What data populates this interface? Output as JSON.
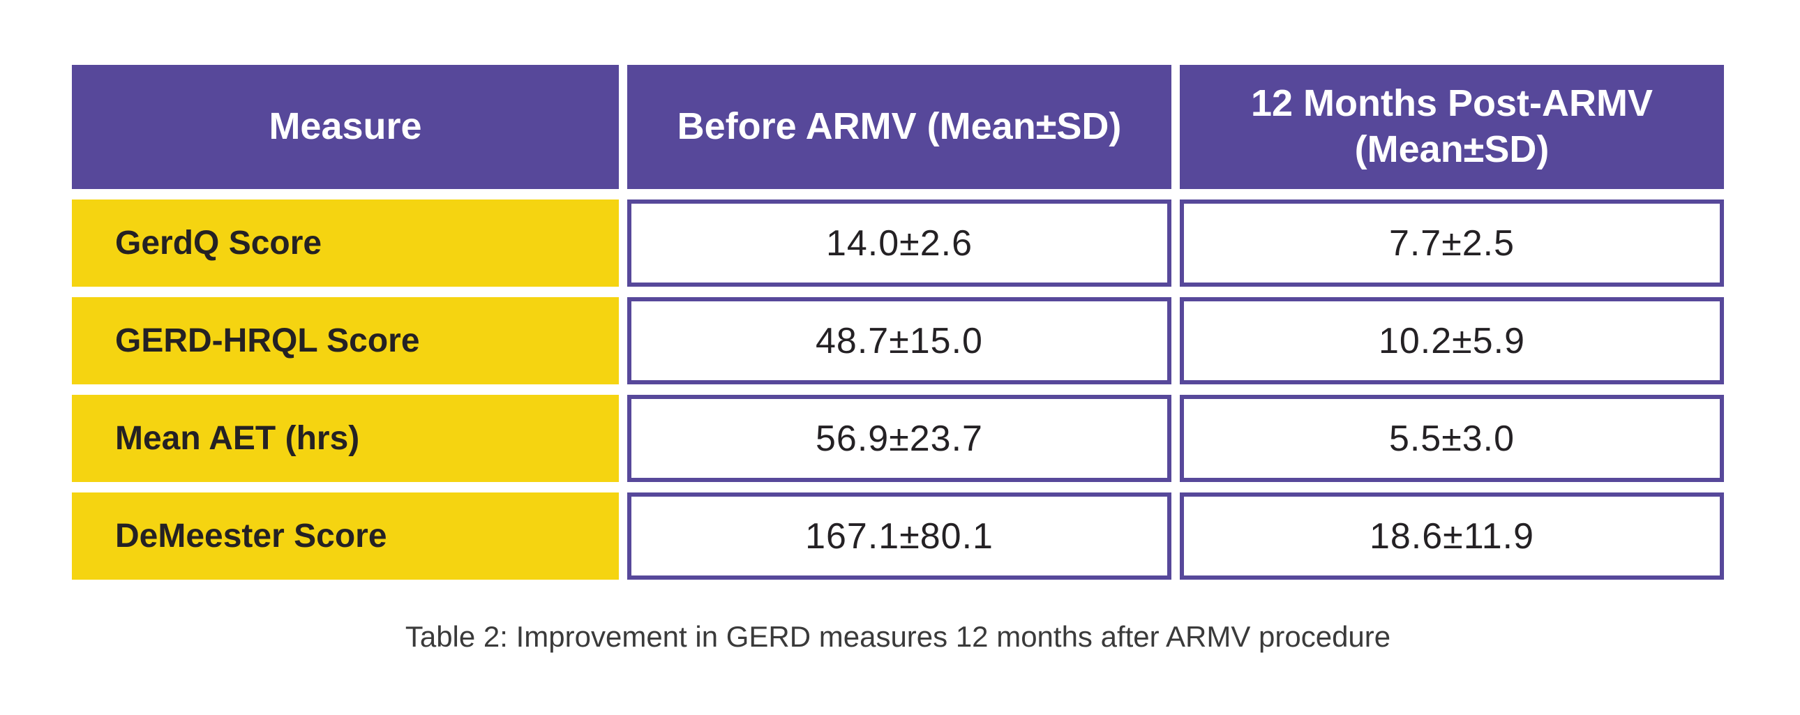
{
  "table": {
    "columns": [
      "Measure",
      "Before ARMV (Mean±SD)",
      "12 Months Post-ARMV (Mean±SD)"
    ],
    "rows": [
      {
        "measure": "GerdQ Score",
        "before": "14.0±2.6",
        "after": "7.7±2.5"
      },
      {
        "measure": "GERD-HRQL Score",
        "before": "48.7±15.0",
        "after": "10.2±5.9"
      },
      {
        "measure": "Mean AET (hrs)",
        "before": "56.9±23.7",
        "after": "5.5±3.0"
      },
      {
        "measure": "DeMeester Score",
        "before": "167.1±80.1",
        "after": "18.6±11.9"
      }
    ],
    "caption": "Table 2: Improvement in GERD measures 12 months after ARMV procedure"
  },
  "colors": {
    "header_bg": "#57489a",
    "header_text": "#ffffff",
    "row_label_bg": "#f5d411",
    "data_cell_border": "#57489a",
    "body_text": "#242124",
    "caption_text": "#3a3a3a",
    "page_bg": "#ffffff"
  }
}
